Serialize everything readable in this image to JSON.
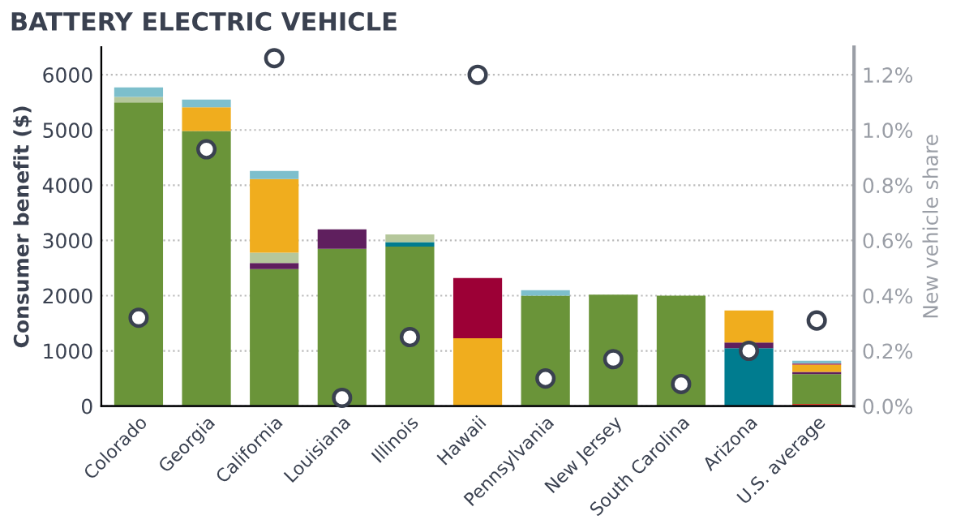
{
  "chart_data": {
    "type": "bar",
    "stacked": true,
    "title": "BATTERY ELECTRIC VEHICLE",
    "ylabel": "Consumer benefit ($)",
    "y2label": "New vehicle share",
    "categories": [
      "Colorado",
      "Georgia",
      "California",
      "Louisiana",
      "Illinois",
      "Hawaii",
      "Pennsylvania",
      "New Jersey",
      "South Carolina",
      "Arizona",
      "U.S. average"
    ],
    "series": [
      {
        "color": "#d9452b",
        "values": [
          null,
          null,
          null,
          null,
          null,
          null,
          null,
          null,
          null,
          null,
          40
        ]
      },
      {
        "color": "#6a9439",
        "values": [
          5500,
          4980,
          2480,
          2850,
          2890,
          null,
          2000,
          2020,
          2000,
          null,
          540
        ]
      },
      {
        "color": "#007c8f",
        "values": [
          null,
          null,
          null,
          null,
          80,
          null,
          null,
          null,
          null,
          1050,
          null
        ]
      },
      {
        "color": "#5f1f5e",
        "values": [
          null,
          null,
          110,
          350,
          null,
          null,
          null,
          null,
          null,
          100,
          40
        ]
      },
      {
        "color": "#b5c79b",
        "values": [
          100,
          null,
          190,
          null,
          140,
          null,
          null,
          null,
          null,
          null,
          null
        ]
      },
      {
        "color": "#f0ad1e",
        "values": [
          null,
          430,
          1330,
          null,
          null,
          1230,
          null,
          null,
          null,
          580,
          130
        ]
      },
      {
        "color": "#9c0036",
        "values": [
          null,
          null,
          null,
          null,
          null,
          1090,
          null,
          null,
          null,
          null,
          20
        ]
      },
      {
        "color": "#7dbfcc",
        "values": [
          170,
          140,
          150,
          null,
          null,
          null,
          100,
          null,
          null,
          null,
          50
        ]
      },
      {
        "type": "scatter",
        "axis": "y2",
        "color": "#ffffff",
        "marker": "circle",
        "values": [
          0.32,
          0.93,
          1.26,
          0.03,
          0.25,
          1.2,
          0.1,
          0.17,
          0.08,
          0.2,
          0.31
        ]
      }
    ],
    "ylim": [
      0,
      6500
    ],
    "yticks": [
      0,
      1000,
      2000,
      3000,
      4000,
      5000,
      6000
    ],
    "y2lim": [
      0,
      1.3
    ],
    "y2ticks": [
      {
        "value": 0,
        "label": "0.0%"
      },
      {
        "value": 0.2,
        "label": "0.2%"
      },
      {
        "value": 0.4,
        "label": "0.4%"
      },
      {
        "value": 0.6,
        "label": "0.6%"
      },
      {
        "value": 0.8,
        "label": "0.8%"
      },
      {
        "value": 1.0,
        "label": "1.0%"
      },
      {
        "value": 1.2,
        "label": "1.2%"
      }
    ],
    "grid": "y",
    "legend": false
  }
}
